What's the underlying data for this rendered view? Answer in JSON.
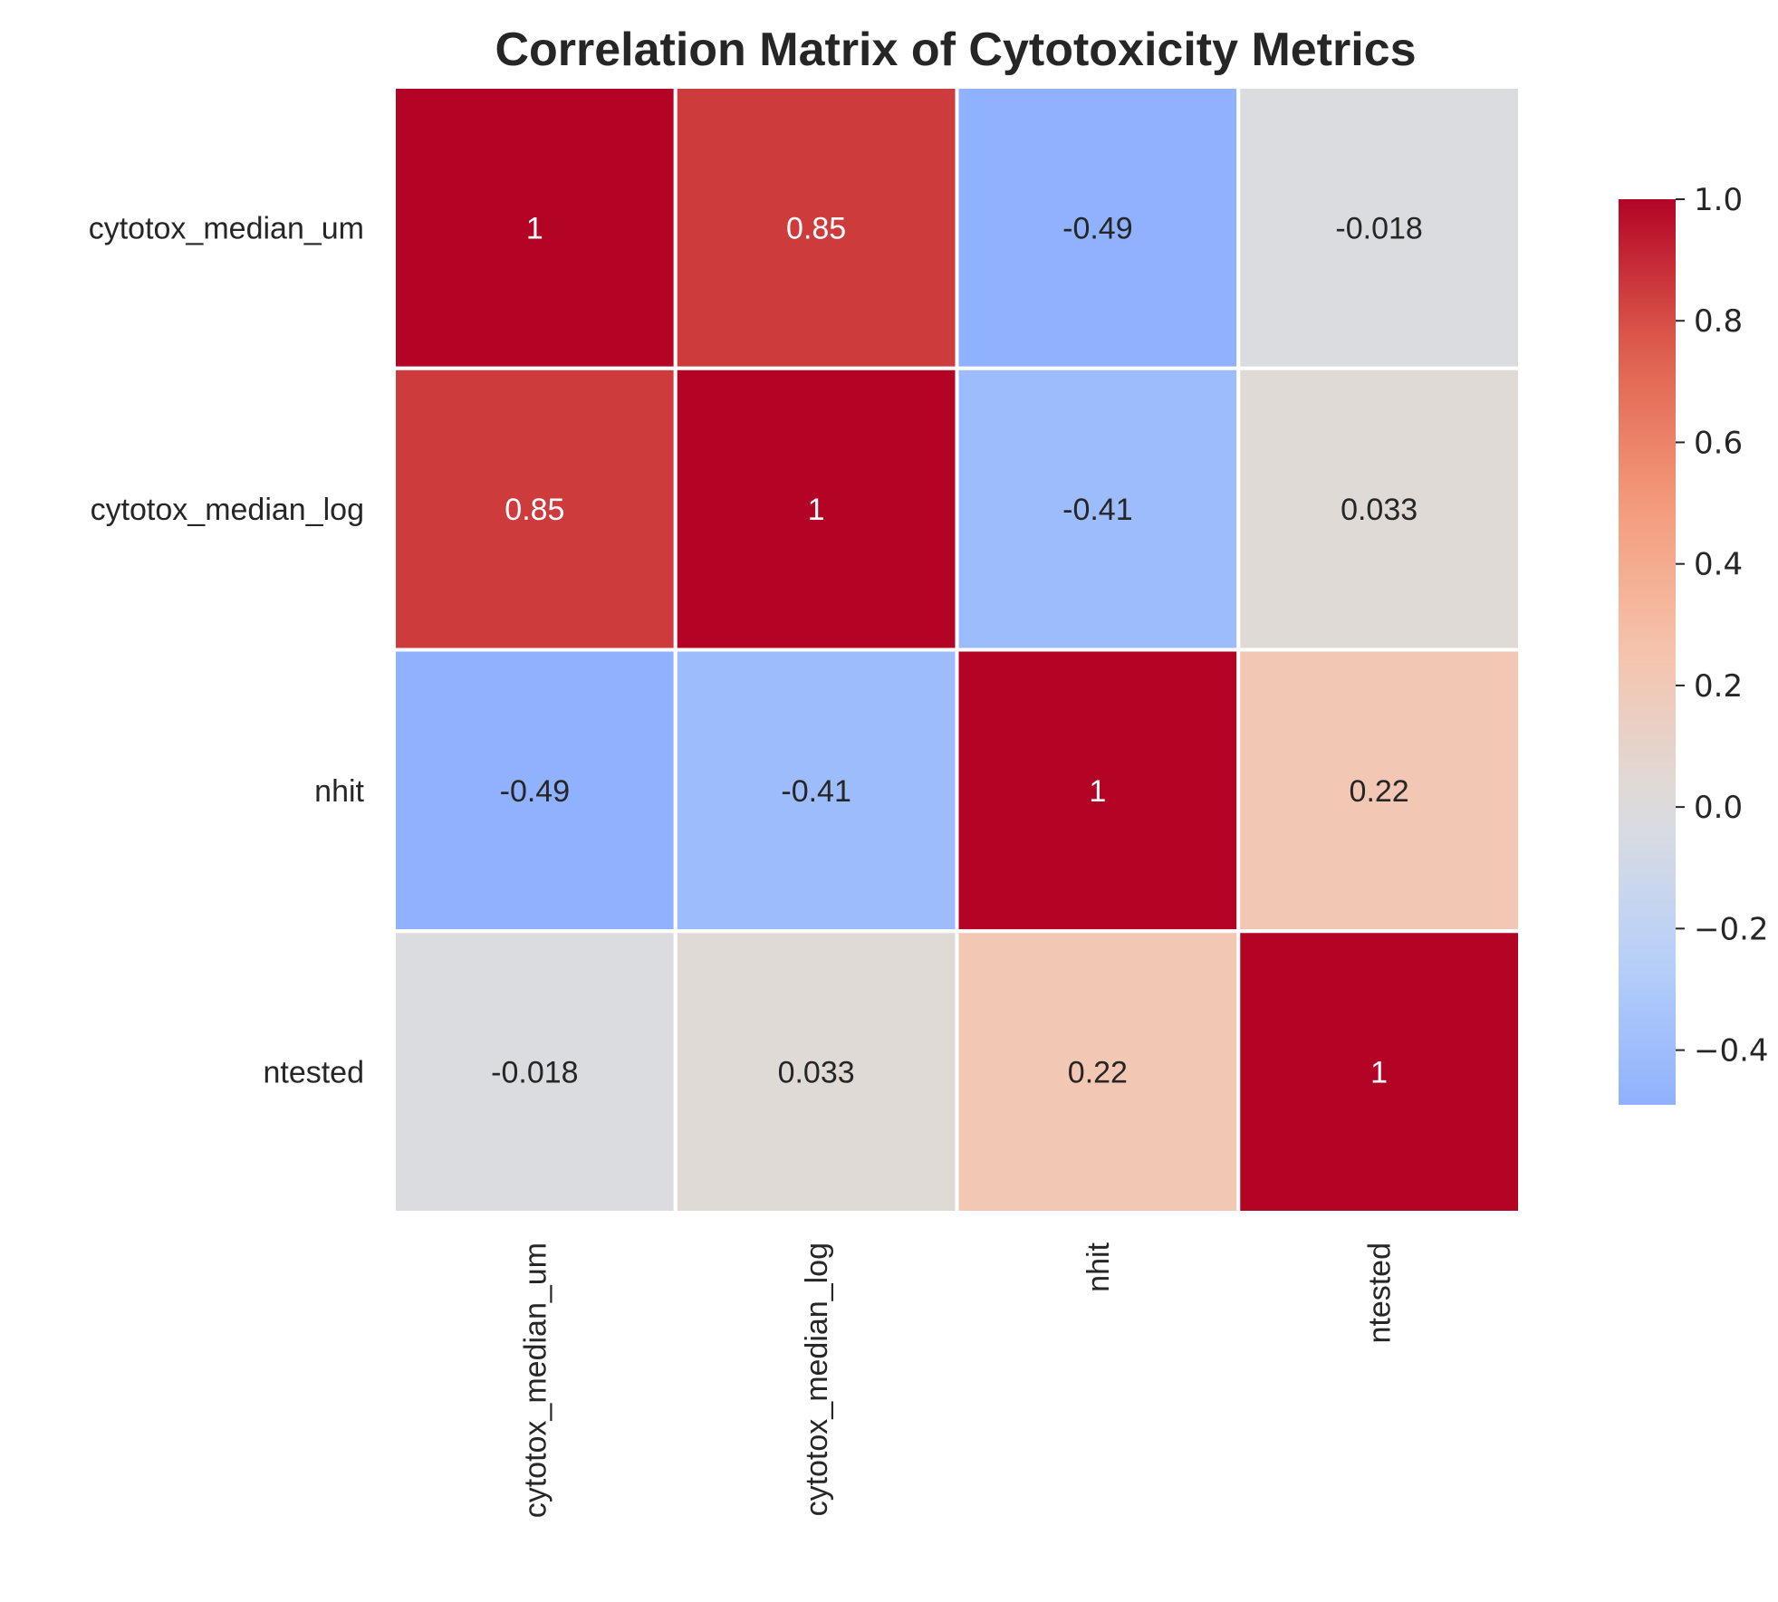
{
  "chart_data": {
    "type": "heatmap",
    "title": "Correlation Matrix of Cytotoxicity Metrics",
    "rows": [
      "cytotox_median_um",
      "cytotox_median_log",
      "nhit",
      "ntested"
    ],
    "columns": [
      "cytotox_median_um",
      "cytotox_median_log",
      "nhit",
      "ntested"
    ],
    "values": [
      [
        1,
        0.85,
        -0.49,
        -0.018
      ],
      [
        0.85,
        1,
        -0.41,
        0.033
      ],
      [
        -0.49,
        -0.41,
        1,
        0.22
      ],
      [
        -0.018,
        0.033,
        0.22,
        1
      ]
    ],
    "cell_labels": [
      [
        "1",
        "0.85",
        "-0.49",
        "-0.018"
      ],
      [
        "0.85",
        "1",
        "-0.41",
        "0.033"
      ],
      [
        "-0.49",
        "-0.41",
        "1",
        "0.22"
      ],
      [
        "-0.018",
        "0.033",
        "0.22",
        "1"
      ]
    ],
    "colormap": "coolwarm",
    "vmin": -0.49,
    "vmax": 1.0,
    "center": 0,
    "colorbar": {
      "ticks": [
        1.0,
        0.8,
        0.6,
        0.4,
        0.2,
        0.0,
        -0.2,
        -0.4
      ],
      "tick_labels": [
        "1.0",
        "0.8",
        "0.6",
        "0.4",
        "0.2",
        "0.0",
        "−0.2",
        "−0.4"
      ],
      "placement": "right"
    },
    "grid": false,
    "cell_border_color": "#ffffff"
  }
}
